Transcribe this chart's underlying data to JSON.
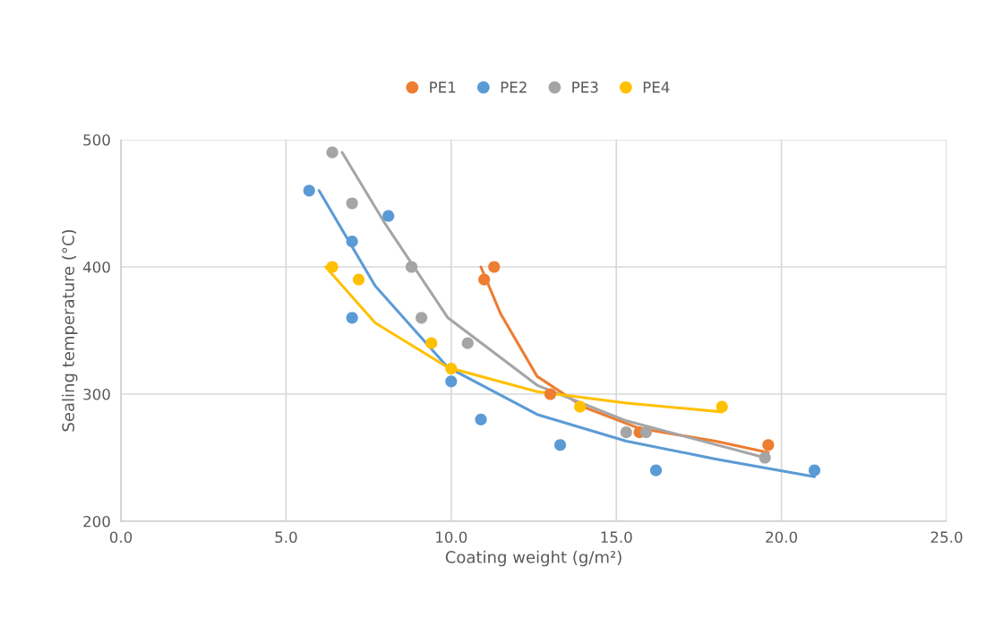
{
  "chart_data": {
    "type": "scatter",
    "xlabel": "Coating weight (g/m²)",
    "ylabel": "Sealing temperature (°C)",
    "xlim": [
      0,
      25
    ],
    "ylim": [
      200,
      500
    ],
    "xticks": [
      {
        "value": 0,
        "label": "0.0"
      },
      {
        "value": 5,
        "label": "5.0"
      },
      {
        "value": 10,
        "label": "10.0"
      },
      {
        "value": 15,
        "label": "15.0"
      },
      {
        "value": 20,
        "label": "20.0"
      },
      {
        "value": 25,
        "label": "25.0"
      }
    ],
    "yticks": [
      200,
      300,
      400,
      500
    ],
    "grid": true,
    "legend": "top",
    "marker": "circle",
    "series": [
      {
        "name": "PE1",
        "color": "#ed7d31",
        "x": [
          11.0,
          11.3,
          13.0,
          15.7,
          19.6
        ],
        "values": [
          390,
          400,
          300,
          270,
          260
        ]
      },
      {
        "name": "PE2",
        "color": "#5b9bd5",
        "x": [
          5.7,
          7.0,
          7.0,
          8.1,
          10.0,
          10.9,
          13.3,
          16.2,
          21.0
        ],
        "values": [
          460,
          420,
          360,
          440,
          310,
          280,
          260,
          240,
          240
        ]
      },
      {
        "name": "PE3",
        "color": "#a5a5a5",
        "x": [
          6.4,
          7.0,
          8.8,
          9.1,
          10.5,
          15.3,
          15.9,
          19.5
        ],
        "values": [
          490,
          450,
          400,
          360,
          340,
          270,
          270,
          250
        ]
      },
      {
        "name": "PE4",
        "color": "#ffc000",
        "x": [
          6.4,
          7.2,
          9.4,
          10.0,
          13.9,
          18.2
        ],
        "values": [
          400,
          390,
          340,
          320,
          290,
          290
        ]
      },
      {
        "type": "line",
        "marker": "none",
        "color": "#ed7d31",
        "x": [
          10.9,
          11.5,
          12.6,
          14.0,
          15.7,
          18.0,
          19.6
        ],
        "values": [
          400,
          363,
          314,
          290,
          273,
          263,
          254
        ]
      },
      {
        "type": "line",
        "marker": "none",
        "color": "#5b9bd5",
        "x": [
          6.0,
          7.7,
          9.9,
          12.6,
          15.3,
          18.0,
          21.0
        ],
        "values": [
          460,
          385,
          321,
          284,
          263,
          249,
          235
        ]
      },
      {
        "type": "line",
        "marker": "none",
        "color": "#a5a5a5",
        "x": [
          6.7,
          8.0,
          9.9,
          12.6,
          15.3,
          19.5
        ],
        "values": [
          490,
          434,
          360,
          307,
          279,
          250
        ]
      },
      {
        "type": "line",
        "marker": "none",
        "color": "#ffc000",
        "x": [
          6.2,
          7.7,
          9.9,
          12.6,
          15.3,
          18.2
        ],
        "values": [
          400,
          356,
          321,
          302,
          293,
          286
        ]
      }
    ]
  }
}
